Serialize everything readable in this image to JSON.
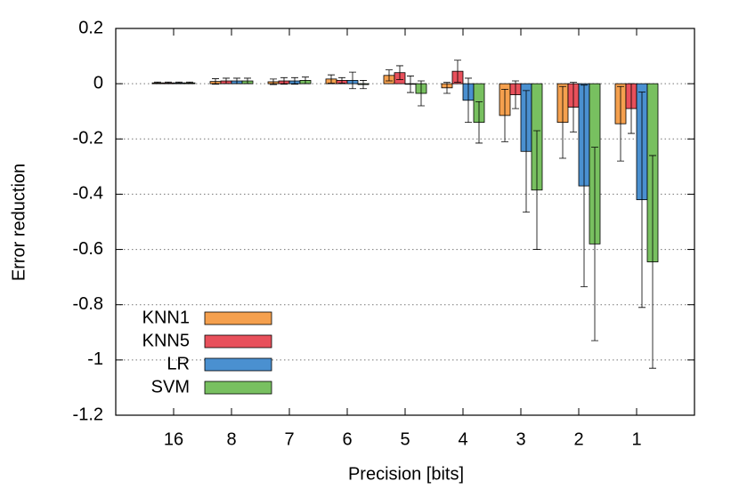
{
  "chart_data": {
    "type": "bar",
    "xlabel": "Precision [bits]",
    "ylabel": "Error reduction",
    "categories": [
      "16",
      "8",
      "7",
      "6",
      "5",
      "4",
      "3",
      "2",
      "1"
    ],
    "series": [
      {
        "name": "KNN1",
        "color": "#f5a04e",
        "values": [
          0.003,
          0.008,
          0.007,
          0.017,
          0.03,
          -0.015,
          -0.115,
          -0.14,
          -0.145
        ],
        "errors": [
          0.003,
          0.01,
          0.01,
          0.015,
          0.02,
          0.02,
          0.095,
          0.13,
          0.135
        ]
      },
      {
        "name": "KNN5",
        "color": "#e8505b",
        "values": [
          0.003,
          0.01,
          0.01,
          0.012,
          0.04,
          0.045,
          -0.04,
          -0.085,
          -0.09
        ],
        "errors": [
          0.003,
          0.01,
          0.012,
          0.01,
          0.025,
          0.04,
          0.05,
          0.09,
          0.09
        ]
      },
      {
        "name": "LR",
        "color": "#4a90d0",
        "values": [
          0.003,
          0.01,
          0.01,
          0.012,
          -0.002,
          -0.06,
          -0.245,
          -0.37,
          -0.42
        ],
        "errors": [
          0.003,
          0.01,
          0.012,
          0.03,
          0.03,
          0.08,
          0.22,
          0.365,
          0.39
        ]
      },
      {
        "name": "SVM",
        "color": "#78c060",
        "values": [
          0.003,
          0.01,
          0.012,
          -0.003,
          -0.035,
          -0.14,
          -0.385,
          -0.58,
          -0.645
        ],
        "errors": [
          0.003,
          0.01,
          0.012,
          0.015,
          0.045,
          0.075,
          0.215,
          0.35,
          0.385
        ]
      }
    ],
    "ylim": [
      -1.2,
      0.2
    ],
    "yticks": [
      0.2,
      0,
      -0.2,
      -0.4,
      -0.6,
      -0.8,
      -1,
      -1.2
    ],
    "grid": true,
    "legend": "lower-left"
  }
}
